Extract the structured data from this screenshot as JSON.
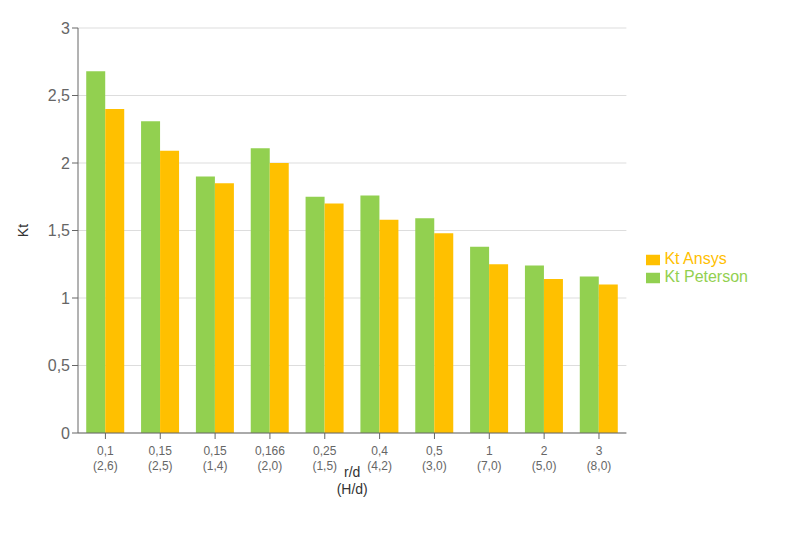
{
  "chart_data": {
    "type": "bar",
    "categories": [
      "0,1\n(2,6)",
      "0,15\n(2,5)",
      "0,15\n(1,4)",
      "0,166\n(2,0)",
      "0,25\n(1,5)",
      "0,4\n(4,2)",
      "0,5\n(3,0)",
      "1\n(7,0)",
      "2\n(5,0)",
      "3\n(8,0)"
    ],
    "series": [
      {
        "name": "Kt Peterson",
        "color": "#92D050",
        "values": [
          2.68,
          2.31,
          1.9,
          2.11,
          1.75,
          1.76,
          1.59,
          1.38,
          1.24,
          1.16
        ]
      },
      {
        "name": "Kt Ansys",
        "color": "#FFC000",
        "values": [
          2.4,
          2.09,
          1.85,
          2.0,
          1.7,
          1.58,
          1.48,
          1.25,
          1.14,
          1.1
        ]
      }
    ],
    "x_label": "r/d\n(H/d)",
    "y_label": "Kt",
    "ylim": [
      0,
      3.0
    ],
    "yticks": [
      0,
      {
        "value": 0.5,
        "label": "0,5"
      },
      1,
      {
        "value": 1.5,
        "label": "1,5"
      },
      2,
      {
        "value": 2.5,
        "label": "2,5"
      },
      3
    ],
    "grid": true,
    "legend": "right"
  }
}
